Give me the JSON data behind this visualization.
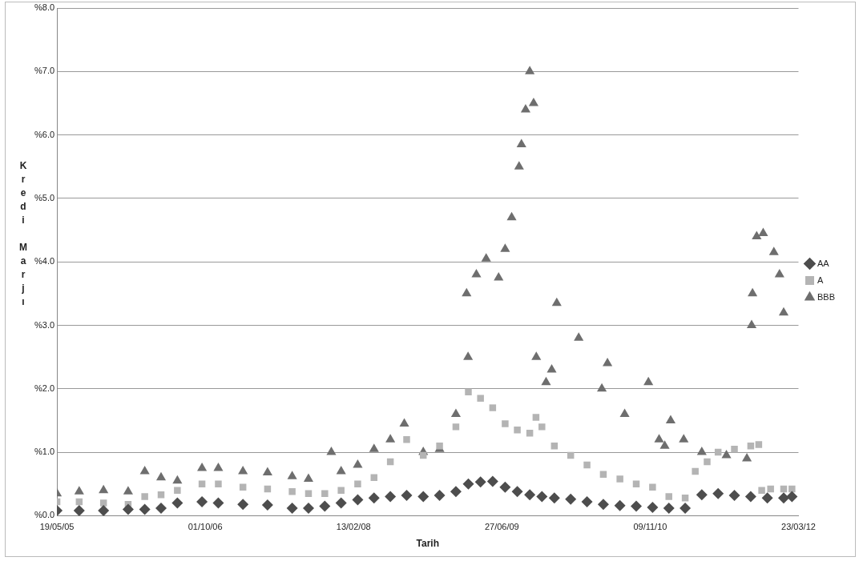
{
  "chart_data": {
    "type": "scatter",
    "xlabel": "Tarih",
    "ylabel": "Kredi Marjı",
    "xlim": [
      "2005-05-19",
      "2012-03-23"
    ],
    "xticks": [
      {
        "value": "2005-05-19",
        "label": "19/05/05"
      },
      {
        "value": "2006-10-01",
        "label": "01/10/06"
      },
      {
        "value": "2008-02-13",
        "label": "13/02/08"
      },
      {
        "value": "2009-06-27",
        "label": "27/06/09"
      },
      {
        "value": "2010-11-09",
        "label": "09/11/10"
      },
      {
        "value": "2012-03-23",
        "label": "23/03/12"
      }
    ],
    "ylim": [
      0,
      8
    ],
    "yticks": [
      {
        "value": 0,
        "label": "%0.0"
      },
      {
        "value": 1,
        "label": "%1.0"
      },
      {
        "value": 2,
        "label": "%2.0"
      },
      {
        "value": 3,
        "label": "%3.0"
      },
      {
        "value": 4,
        "label": "%4.0"
      },
      {
        "value": 5,
        "label": "%5.0"
      },
      {
        "value": 6,
        "label": "%6.0"
      },
      {
        "value": 7,
        "label": "%7.0"
      },
      {
        "value": 8,
        "label": "%8.0"
      }
    ],
    "grid": "y",
    "legend": "right",
    "series": [
      {
        "name": "AA",
        "color": "#4d4d4d",
        "marker": "diamond",
        "x": [
          "2005-05-19",
          "2005-08-02",
          "2005-10-23",
          "2006-01-14",
          "2006-03-11",
          "2006-05-05",
          "2006-06-29",
          "2006-09-20",
          "2006-11-14",
          "2007-02-05",
          "2007-04-29",
          "2007-07-21",
          "2007-09-14",
          "2007-11-08",
          "2008-01-02",
          "2008-02-27",
          "2008-04-22",
          "2008-06-16",
          "2008-08-10",
          "2008-10-05",
          "2008-11-29",
          "2009-01-23",
          "2009-03-06",
          "2009-04-16",
          "2009-05-27",
          "2009-07-08",
          "2009-08-18",
          "2009-09-29",
          "2009-11-09",
          "2009-12-21",
          "2010-02-14",
          "2010-04-10",
          "2010-06-04",
          "2010-07-30",
          "2010-09-23",
          "2010-11-17",
          "2011-01-11",
          "2011-03-07",
          "2011-05-02",
          "2011-06-26",
          "2011-08-20",
          "2011-10-14",
          "2011-12-09",
          "2012-02-02",
          "2012-03-01"
        ],
        "values": [
          0.08,
          0.08,
          0.08,
          0.1,
          0.1,
          0.12,
          0.2,
          0.22,
          0.2,
          0.18,
          0.17,
          0.12,
          0.12,
          0.15,
          0.2,
          0.25,
          0.28,
          0.3,
          0.32,
          0.3,
          0.32,
          0.38,
          0.5,
          0.53,
          0.54,
          0.45,
          0.38,
          0.33,
          0.3,
          0.28,
          0.26,
          0.22,
          0.18,
          0.16,
          0.15,
          0.13,
          0.12,
          0.12,
          0.33,
          0.35,
          0.32,
          0.3,
          0.28,
          0.28,
          0.3
        ]
      },
      {
        "name": "A",
        "color": "#b4b4b4",
        "marker": "square",
        "x": [
          "2005-05-19",
          "2005-08-02",
          "2005-10-23",
          "2006-01-14",
          "2006-03-11",
          "2006-05-05",
          "2006-06-29",
          "2006-09-20",
          "2006-11-14",
          "2007-02-05",
          "2007-04-29",
          "2007-07-21",
          "2007-09-14",
          "2007-11-08",
          "2008-01-02",
          "2008-02-27",
          "2008-04-22",
          "2008-06-16",
          "2008-08-10",
          "2008-10-05",
          "2008-11-29",
          "2009-01-23",
          "2009-03-06",
          "2009-04-16",
          "2009-05-27",
          "2009-07-08",
          "2009-08-18",
          "2009-09-29",
          "2009-10-20",
          "2009-11-09",
          "2009-12-21",
          "2010-02-14",
          "2010-04-10",
          "2010-06-04",
          "2010-07-30",
          "2010-09-23",
          "2010-11-17",
          "2011-01-11",
          "2011-03-07",
          "2011-04-10",
          "2011-05-20",
          "2011-06-26",
          "2011-08-20",
          "2011-10-14",
          "2011-11-10",
          "2011-11-20",
          "2011-12-20",
          "2012-02-02",
          "2012-03-01"
        ],
        "values": [
          0.22,
          0.22,
          0.2,
          0.18,
          0.3,
          0.33,
          0.4,
          0.5,
          0.5,
          0.45,
          0.42,
          0.38,
          0.35,
          0.35,
          0.4,
          0.5,
          0.6,
          0.85,
          1.2,
          0.95,
          1.1,
          1.4,
          1.95,
          1.85,
          1.7,
          1.45,
          1.35,
          1.3,
          1.55,
          1.4,
          1.1,
          0.95,
          0.8,
          0.65,
          0.58,
          0.5,
          0.45,
          0.3,
          0.28,
          0.7,
          0.85,
          1.0,
          1.05,
          1.1,
          1.12,
          0.4,
          0.42,
          0.42,
          0.42
        ]
      },
      {
        "name": "BBB",
        "color": "#6e6e6e",
        "marker": "triangle",
        "x": [
          "2005-05-19",
          "2005-08-02",
          "2005-10-23",
          "2006-01-14",
          "2006-03-11",
          "2006-05-05",
          "2006-06-29",
          "2006-09-20",
          "2006-11-14",
          "2007-02-05",
          "2007-04-29",
          "2007-07-21",
          "2007-09-14",
          "2007-11-30",
          "2008-01-02",
          "2008-02-27",
          "2008-04-22",
          "2008-06-16",
          "2008-08-02",
          "2008-10-05",
          "2008-11-29",
          "2009-01-23",
          "2009-03-05",
          "2009-02-28",
          "2009-04-02",
          "2009-05-05",
          "2009-06-16",
          "2009-07-08",
          "2009-07-30",
          "2009-08-24",
          "2009-09-01",
          "2009-09-15",
          "2009-09-29",
          "2009-10-12",
          "2009-10-21",
          "2009-11-23",
          "2009-12-12",
          "2009-12-29",
          "2010-03-13",
          "2010-05-30",
          "2010-06-18",
          "2010-08-15",
          "2010-11-03",
          "2010-12-09",
          "2010-12-28",
          "2011-01-17",
          "2011-03-02",
          "2011-05-02",
          "2011-07-24",
          "2011-10-01",
          "2011-10-17",
          "2011-10-20",
          "2011-11-03",
          "2011-11-25",
          "2011-12-31",
          "2012-01-19",
          "2012-02-02"
        ],
        "values": [
          0.35,
          0.38,
          0.4,
          0.38,
          0.7,
          0.6,
          0.55,
          0.75,
          0.75,
          0.7,
          0.68,
          0.62,
          0.58,
          1.0,
          0.7,
          0.8,
          1.05,
          1.2,
          1.45,
          1.0,
          1.05,
          1.6,
          2.5,
          3.5,
          3.8,
          4.05,
          3.75,
          4.2,
          4.7,
          5.5,
          5.85,
          6.4,
          7.0,
          6.5,
          2.5,
          2.1,
          2.3,
          3.35,
          2.8,
          2.0,
          2.4,
          1.6,
          2.1,
          1.2,
          1.1,
          1.5,
          1.2,
          1.0,
          0.95,
          0.9,
          3.0,
          3.5,
          4.4,
          4.45,
          4.15,
          3.8,
          3.2
        ]
      }
    ]
  }
}
